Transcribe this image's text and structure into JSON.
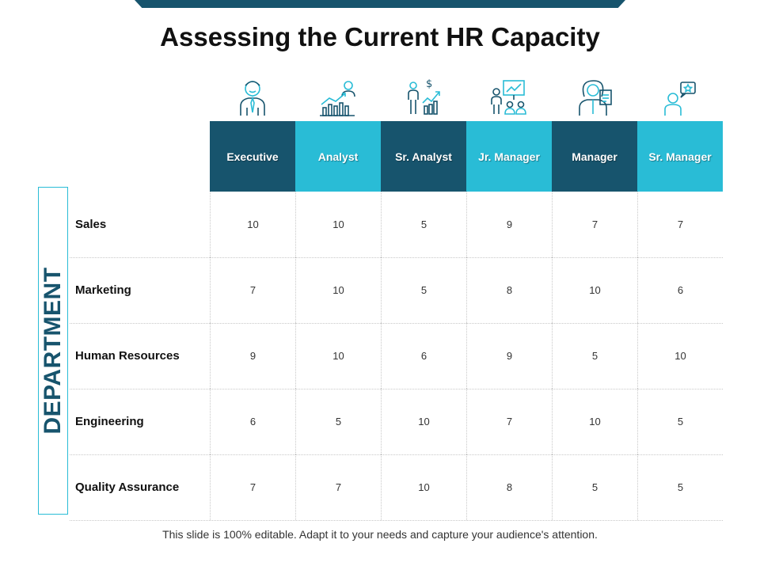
{
  "title": "Assessing the Current HR Capacity",
  "colors": {
    "dark": "#17546d",
    "light": "#29bcd6"
  },
  "columns": [
    {
      "label": "Executive",
      "icon": "executive-person-icon",
      "color": "#17546d"
    },
    {
      "label": "Analyst",
      "icon": "analyst-growth-chart-icon",
      "color": "#29bcd6"
    },
    {
      "label": "Sr. Analyst",
      "icon": "sr-analyst-dollar-chart-icon",
      "color": "#17546d"
    },
    {
      "label": "Jr. Manager",
      "icon": "jr-manager-presentation-icon",
      "color": "#29bcd6"
    },
    {
      "label": "Manager",
      "icon": "manager-woman-document-icon",
      "color": "#17546d"
    },
    {
      "label": "Sr. Manager",
      "icon": "sr-manager-star-speech-icon",
      "color": "#29bcd6"
    }
  ],
  "side_label": "DEPARTMENT",
  "rows": [
    {
      "label": "Sales",
      "values": [
        "10",
        "10",
        "5",
        "9",
        "7",
        "7"
      ]
    },
    {
      "label": "Marketing",
      "values": [
        "7",
        "10",
        "5",
        "8",
        "10",
        "6"
      ]
    },
    {
      "label": "Human Resources",
      "values": [
        "9",
        "10",
        "6",
        "9",
        "5",
        "10"
      ]
    },
    {
      "label": "Engineering",
      "values": [
        "6",
        "5",
        "10",
        "7",
        "10",
        "5"
      ]
    },
    {
      "label": "Quality Assurance",
      "values": [
        "7",
        "7",
        "10",
        "8",
        "5",
        "5"
      ]
    }
  ],
  "footer": "This slide is 100% editable. Adapt it to your needs and capture your audience's attention."
}
